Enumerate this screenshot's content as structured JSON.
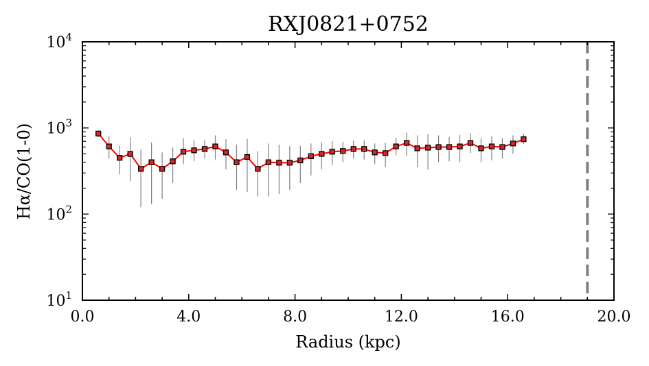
{
  "chart_data": {
    "type": "line",
    "title": "RXJ0821+0752",
    "xlabel": "Radius (kpc)",
    "ylabel": "Hα/CO(1-0)",
    "xlim": [
      0,
      20
    ],
    "ylim": [
      10,
      10000
    ],
    "yscale": "log",
    "grid": false,
    "x_ticks": [
      "0.0",
      "4.0",
      "8.0",
      "12.0",
      "16.0",
      "20.0"
    ],
    "y_ticks": [
      {
        "base": "10",
        "exp": "1"
      },
      {
        "base": "10",
        "exp": "2"
      },
      {
        "base": "10",
        "exp": "3"
      },
      {
        "base": "10",
        "exp": "4"
      }
    ],
    "colors": {
      "line": "#ff0000",
      "marker_fill": "#d62728",
      "marker_edge": "#000000",
      "errorbar": "#808080",
      "vline": "#808080"
    },
    "series": [
      {
        "x": [
          0.6,
          1.0,
          1.4,
          1.8,
          2.2,
          2.6,
          3.0,
          3.4,
          3.8,
          4.2,
          4.6,
          5.0,
          5.4,
          5.8,
          6.2,
          6.6,
          7.0,
          7.4,
          7.8,
          8.2,
          8.6,
          9.0,
          9.4,
          9.8,
          10.2,
          10.6,
          11.0,
          11.4,
          11.8,
          12.2,
          12.6,
          13.0,
          13.4,
          13.8,
          14.2,
          14.6,
          15.0,
          15.4,
          15.8,
          16.2,
          16.6
        ],
        "y": [
          860,
          610,
          450,
          500,
          335,
          400,
          335,
          410,
          530,
          550,
          570,
          610,
          520,
          400,
          460,
          335,
          400,
          395,
          395,
          420,
          470,
          500,
          530,
          540,
          570,
          570,
          520,
          510,
          610,
          670,
          580,
          590,
          600,
          600,
          610,
          670,
          580,
          610,
          600,
          660,
          740
        ],
        "yerr_low": [
          780,
          440,
          290,
          240,
          120,
          130,
          150,
          230,
          380,
          410,
          440,
          430,
          330,
          190,
          180,
          160,
          160,
          170,
          190,
          230,
          280,
          330,
          370,
          400,
          440,
          430,
          380,
          350,
          480,
          470,
          350,
          330,
          400,
          410,
          400,
          510,
          400,
          420,
          440,
          500,
          650
        ],
        "yerr_high": [
          940,
          800,
          620,
          780,
          560,
          680,
          520,
          590,
          760,
          720,
          720,
          820,
          740,
          640,
          750,
          540,
          660,
          640,
          620,
          620,
          660,
          680,
          700,
          690,
          710,
          720,
          660,
          670,
          770,
          880,
          820,
          850,
          820,
          790,
          830,
          870,
          760,
          800,
          760,
          820,
          850
        ]
      }
    ],
    "vline_x": 19.0
  }
}
